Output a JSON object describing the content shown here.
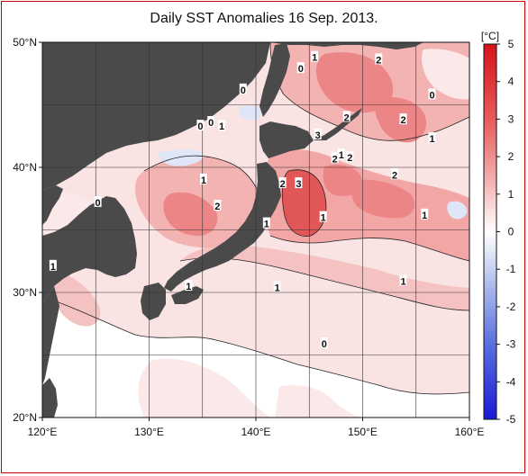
{
  "title": "Daily SST Anomalies 16 Sep. 2013.",
  "map": {
    "lon_range": [
      120,
      160
    ],
    "lat_range": [
      20,
      50
    ],
    "lon_ticks": [
      {
        "value": 120,
        "label": "120°E"
      },
      {
        "value": 130,
        "label": "130°E"
      },
      {
        "value": 140,
        "label": "140°E"
      },
      {
        "value": 150,
        "label": "150°E"
      },
      {
        "value": 160,
        "label": "160°E"
      }
    ],
    "lat_ticks": [
      {
        "value": 20,
        "label": "20°N"
      },
      {
        "value": 30,
        "label": "30°N"
      },
      {
        "value": 40,
        "label": "40°N"
      },
      {
        "value": 50,
        "label": "50°N"
      }
    ],
    "grid_lines_lon": [
      120,
      125,
      130,
      135,
      140,
      145,
      150,
      155,
      160
    ],
    "grid_lines_lat": [
      20,
      25,
      30,
      35,
      40,
      45,
      50
    ],
    "colors": {
      "land": "#4a4a4a",
      "pos_light": "#f9dcdc",
      "pos_mid": "#f2a0a0",
      "pos_strong": "#e25858",
      "neg_light": "#dfe6f7",
      "neutral": "#ffffff"
    },
    "contour_labels": [
      {
        "text": "1",
        "lon": 145.5,
        "lat": 48.8
      },
      {
        "text": "2",
        "lon": 151.5,
        "lat": 48.6
      },
      {
        "text": "0",
        "lon": 144.2,
        "lat": 47.9
      },
      {
        "text": "0",
        "lon": 138.8,
        "lat": 46.2
      },
      {
        "text": "0",
        "lon": 156.5,
        "lat": 45.8
      },
      {
        "text": "2",
        "lon": 148.5,
        "lat": 44.0
      },
      {
        "text": "2",
        "lon": 153.8,
        "lat": 43.8
      },
      {
        "text": "0",
        "lon": 134.8,
        "lat": 43.3
      },
      {
        "text": "0",
        "lon": 135.8,
        "lat": 43.6
      },
      {
        "text": "1",
        "lon": 136.8,
        "lat": 43.3
      },
      {
        "text": "3",
        "lon": 145.8,
        "lat": 42.6
      },
      {
        "text": "1",
        "lon": 156.5,
        "lat": 42.3
      },
      {
        "text": "1",
        "lon": 148.0,
        "lat": 41.0
      },
      {
        "text": "2",
        "lon": 147.4,
        "lat": 40.7
      },
      {
        "text": "2",
        "lon": 148.8,
        "lat": 40.8
      },
      {
        "text": "2",
        "lon": 153.0,
        "lat": 39.4
      },
      {
        "text": "1",
        "lon": 135.1,
        "lat": 39.0
      },
      {
        "text": "2",
        "lon": 142.5,
        "lat": 38.7
      },
      {
        "text": "3",
        "lon": 144.0,
        "lat": 38.7
      },
      {
        "text": "0",
        "lon": 125.2,
        "lat": 37.2
      },
      {
        "text": "2",
        "lon": 136.4,
        "lat": 36.9
      },
      {
        "text": "1",
        "lon": 146.3,
        "lat": 36.0
      },
      {
        "text": "1",
        "lon": 155.8,
        "lat": 36.2
      },
      {
        "text": "1",
        "lon": 141.0,
        "lat": 35.5
      },
      {
        "text": "1",
        "lon": 121.0,
        "lat": 32.1
      },
      {
        "text": "1",
        "lon": 153.8,
        "lat": 30.9
      },
      {
        "text": "1",
        "lon": 133.7,
        "lat": 30.5
      },
      {
        "text": "1",
        "lon": 142.0,
        "lat": 30.4
      },
      {
        "text": "0",
        "lon": 146.4,
        "lat": 25.9
      }
    ]
  },
  "colorbar": {
    "unit": "[°C]",
    "min": -5,
    "max": 5,
    "ticks": [
      5,
      4,
      3,
      2,
      1,
      0,
      -1,
      -2,
      -3,
      -4,
      -5
    ],
    "tick_labels": [
      "5",
      "4",
      "3",
      "2",
      "1",
      "0",
      "-1",
      "-2",
      "-3",
      "-4",
      "-5"
    ],
    "stops": [
      {
        "value": 5,
        "color": "#d7141b"
      },
      {
        "value": 3,
        "color": "#e85a5a"
      },
      {
        "value": 1.5,
        "color": "#f3a9a9"
      },
      {
        "value": 0.5,
        "color": "#fbe2e2"
      },
      {
        "value": 0,
        "color": "#ffffff"
      },
      {
        "value": -0.5,
        "color": "#e4e9f7"
      },
      {
        "value": -1.5,
        "color": "#a9b8ea"
      },
      {
        "value": -3,
        "color": "#5a6fe0"
      },
      {
        "value": -5,
        "color": "#1a1ad6"
      }
    ]
  }
}
